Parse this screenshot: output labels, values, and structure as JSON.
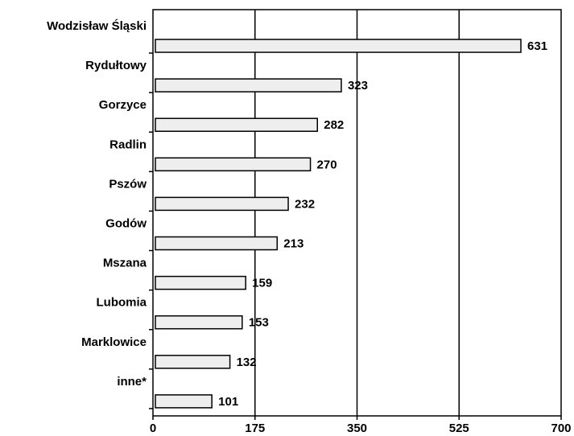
{
  "chart_data": {
    "type": "bar",
    "orientation": "horizontal",
    "categories": [
      "Wodzisław Śląski",
      "Rydułtowy",
      "Gorzyce",
      "Radlin",
      "Pszów",
      "Godów",
      "Mszana",
      "Lubomia",
      "Marklowice",
      "inne*"
    ],
    "values": [
      631,
      323,
      282,
      270,
      232,
      213,
      159,
      153,
      132,
      101
    ],
    "xlim": [
      0,
      700
    ],
    "xticks": [
      "0",
      "175",
      "350",
      "525",
      "700"
    ],
    "grid": true,
    "bar_color": "#eeeeee",
    "bar_edge_color": "#000000",
    "title": "",
    "xlabel": "",
    "ylabel": ""
  }
}
